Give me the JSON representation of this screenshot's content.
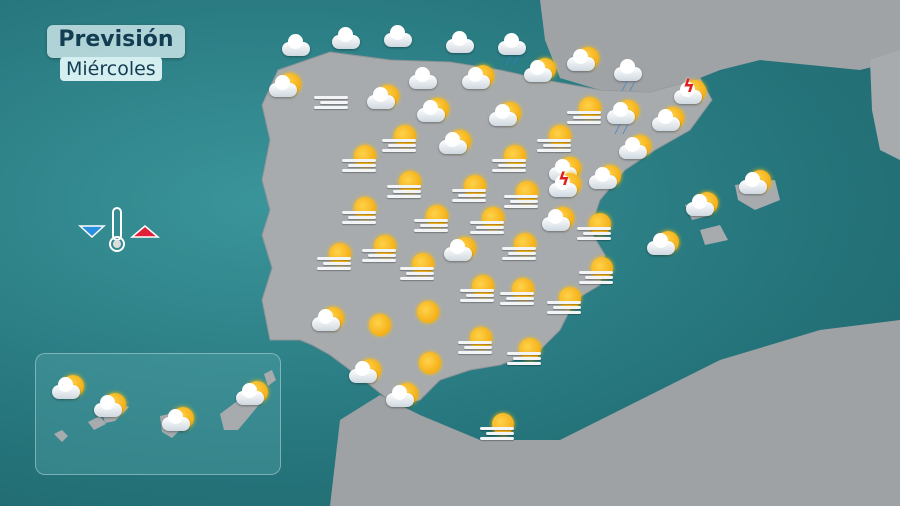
{
  "header": {
    "title": "Previsión",
    "day": "Miércoles"
  },
  "legend": {
    "icon": "thermometer-icon",
    "min_color": "#2a8fe0",
    "max_color": "#e0203a"
  },
  "colors": {
    "sea": "#2a7b82",
    "land": "#a9adb0",
    "sun": "#f5b400"
  },
  "forecast_icons": [
    "cloud",
    "cloud",
    "cloud",
    "cloud",
    "cloud-rain",
    "sun-cloud",
    "haze-cloud",
    "sun-cloud",
    "cloud",
    "sun-cloud",
    "sun-cloud",
    "sun-cloud",
    "cloud-rain",
    "storm",
    "sun-cloud",
    "sun-cloud",
    "sun-haze",
    "sun-rain",
    "sun-cloud",
    "sun-haze",
    "sun-cloud",
    "sun-haze",
    "sun-cloud",
    "sun-haze",
    "sun-haze",
    "sun-cloud",
    "sun-cloud",
    "storm",
    "sun-haze",
    "sun-haze",
    "sun-haze",
    "sun-haze",
    "sun-haze",
    "sun-haze",
    "sun-cloud",
    "sun-haze",
    "sun-cloud",
    "sun-cloud",
    "sun-cloud",
    "sun-haze",
    "sun-haze",
    "sun-cloud",
    "sun-haze",
    "sun-haze",
    "sun-haze",
    "sun-haze",
    "sun-haze",
    "sun-haze",
    "sun-cloud",
    "sun",
    "sun",
    "sun-haze",
    "sun-haze",
    "sun",
    "sun-cloud",
    "sun-cloud",
    "sun-haze"
  ],
  "canarias_icons": [
    "sun-cloud",
    "sun-cloud",
    "sun-cloud",
    "sun-cloud"
  ]
}
